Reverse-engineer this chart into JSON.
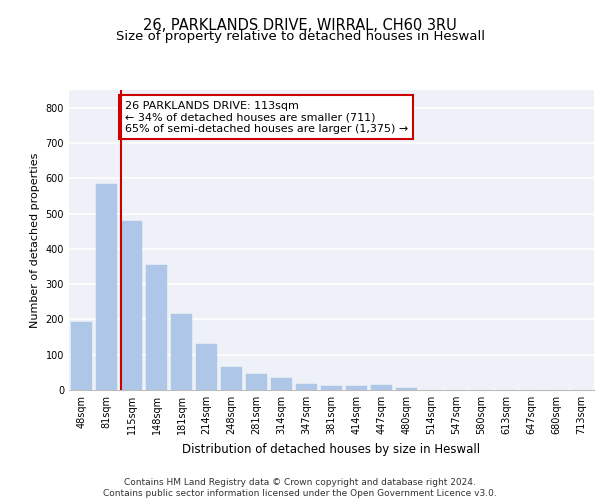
{
  "title1": "26, PARKLANDS DRIVE, WIRRAL, CH60 3RU",
  "title2": "Size of property relative to detached houses in Heswall",
  "xlabel": "Distribution of detached houses by size in Heswall",
  "ylabel": "Number of detached properties",
  "categories": [
    "48sqm",
    "81sqm",
    "115sqm",
    "148sqm",
    "181sqm",
    "214sqm",
    "248sqm",
    "281sqm",
    "314sqm",
    "347sqm",
    "381sqm",
    "414sqm",
    "447sqm",
    "480sqm",
    "514sqm",
    "547sqm",
    "580sqm",
    "613sqm",
    "647sqm",
    "680sqm",
    "713sqm"
  ],
  "values": [
    193,
    585,
    478,
    354,
    215,
    130,
    65,
    45,
    35,
    17,
    10,
    10,
    14,
    7,
    0,
    0,
    0,
    0,
    0,
    0,
    0
  ],
  "bar_color": "#aec6e8",
  "bar_edgecolor": "#aec6e8",
  "vline_x_index": 2,
  "vline_color": "#cc0000",
  "annotation_text": "26 PARKLANDS DRIVE: 113sqm\n← 34% of detached houses are smaller (711)\n65% of semi-detached houses are larger (1,375) →",
  "annotation_box_color": "white",
  "annotation_box_edgecolor": "#cc0000",
  "ylim": [
    0,
    850
  ],
  "yticks": [
    0,
    100,
    200,
    300,
    400,
    500,
    600,
    700,
    800
  ],
  "background_color": "#eef2f8",
  "grid_color": "white",
  "footer_text": "Contains HM Land Registry data © Crown copyright and database right 2024.\nContains public sector information licensed under the Open Government Licence v3.0.",
  "title1_fontsize": 10.5,
  "title2_fontsize": 9.5,
  "xlabel_fontsize": 8.5,
  "ylabel_fontsize": 8,
  "tick_fontsize": 7,
  "annotation_fontsize": 8,
  "footer_fontsize": 6.5
}
